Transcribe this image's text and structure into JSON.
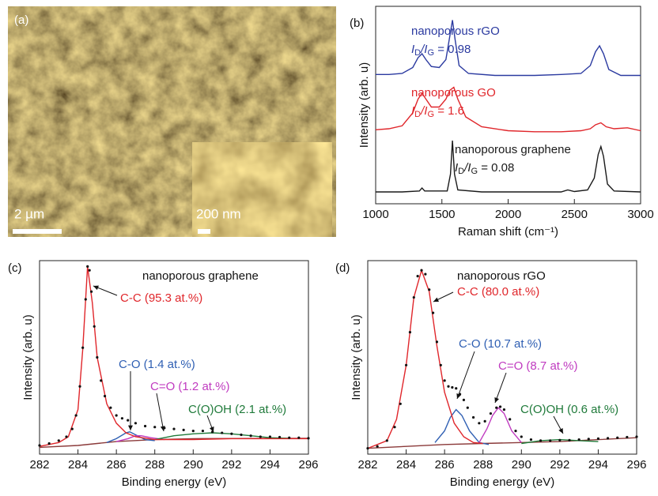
{
  "panel_a": {
    "label": "(a)",
    "scale_bar": "2 µm",
    "inset_scale_bar": "200 nm"
  },
  "chart_data": [
    {
      "type": "line",
      "panel_label": "(b)",
      "xlabel": "Raman shift (cm⁻¹)",
      "ylabel": "Intensity (arb. u)",
      "xlim": [
        1000,
        3000
      ],
      "xticks": [
        1000,
        1500,
        2000,
        2500,
        3000
      ],
      "ylim": [
        0,
        10
      ],
      "series": [
        {
          "color": "#2b3aa0",
          "style": "line",
          "x": [
            1000,
            1100,
            1200,
            1280,
            1320,
            1350,
            1380,
            1420,
            1480,
            1530,
            1560,
            1580,
            1600,
            1630,
            1700,
            1900,
            2200,
            2400,
            2550,
            2620,
            2660,
            2690,
            2720,
            2760,
            2850,
            3000
          ],
          "values": [
            6.55,
            6.55,
            6.6,
            6.9,
            7.4,
            7.6,
            7.3,
            6.95,
            6.9,
            7.3,
            8.5,
            9.3,
            8.3,
            7.0,
            6.6,
            6.5,
            6.5,
            6.55,
            6.6,
            7.0,
            7.7,
            8.0,
            7.6,
            6.8,
            6.5,
            6.5
          ]
        },
        {
          "color": "#e0262b",
          "style": "line",
          "x": [
            1000,
            1100,
            1200,
            1280,
            1320,
            1350,
            1380,
            1420,
            1480,
            1530,
            1560,
            1590,
            1620,
            1680,
            1800,
            2000,
            2200,
            2400,
            2550,
            2620,
            2660,
            2700,
            2740,
            2800,
            2900,
            3000
          ],
          "values": [
            3.75,
            3.8,
            3.95,
            4.6,
            5.3,
            5.6,
            5.3,
            4.9,
            4.9,
            5.3,
            5.75,
            5.9,
            5.3,
            4.4,
            3.9,
            3.7,
            3.65,
            3.65,
            3.7,
            3.8,
            4.0,
            4.1,
            3.9,
            3.8,
            3.85,
            3.7
          ]
        },
        {
          "color": "#1a1a1a",
          "style": "line",
          "x": [
            1000,
            1200,
            1330,
            1350,
            1370,
            1540,
            1565,
            1580,
            1595,
            1620,
            1800,
            2200,
            2400,
            2450,
            2500,
            2600,
            2650,
            2680,
            2700,
            2720,
            2750,
            2800,
            3000
          ],
          "values": [
            0.6,
            0.6,
            0.65,
            0.8,
            0.65,
            0.65,
            1.5,
            3.2,
            1.5,
            0.7,
            0.6,
            0.6,
            0.6,
            0.7,
            0.62,
            0.7,
            1.3,
            2.5,
            2.9,
            2.4,
            1.0,
            0.65,
            0.6
          ]
        }
      ],
      "annotations": [
        {
          "text": "nanoporous rGO",
          "ratio": [
            "I",
            "D",
            "/I",
            "G",
            " = 0.98"
          ],
          "color": "#2b3aa0"
        },
        {
          "text": "nanoporous GO",
          "ratio": [
            "I",
            "D",
            "/I",
            "G",
            " = 1.6"
          ],
          "color": "#e0262b"
        },
        {
          "text": "nanoporous graphene",
          "ratio": [
            "I",
            "D",
            "/I",
            "G",
            " = 0.08"
          ],
          "color": "#1a1a1a"
        }
      ]
    },
    {
      "type": "line",
      "panel_label": "(c)",
      "title": "nanoporous graphene",
      "xlabel": "Binding energy (eV)",
      "ylabel": "Intensity (arb. u)",
      "xlim": [
        282,
        296
      ],
      "xticks": [
        282,
        284,
        286,
        288,
        290,
        292,
        294,
        296
      ],
      "ylim": [
        0,
        10
      ],
      "series": [
        {
          "color": "#8b3a3a",
          "style": "line",
          "x": [
            282,
            284,
            285,
            286,
            288,
            290,
            296
          ],
          "values": [
            0.35,
            0.45,
            0.55,
            0.65,
            0.75,
            0.8,
            0.82
          ]
        },
        {
          "color": "#2f5fb3",
          "style": "line",
          "x": [
            285.5,
            286,
            286.5,
            286.7,
            287,
            287.5,
            288
          ],
          "values": [
            0.6,
            0.8,
            1.1,
            1.15,
            1.0,
            0.75,
            0.7
          ]
        },
        {
          "color": "#c03bc0",
          "style": "line",
          "x": [
            286,
            286.6,
            287,
            287.3,
            287.8,
            288.5
          ],
          "values": [
            0.65,
            0.8,
            0.95,
            0.95,
            0.85,
            0.75
          ]
        },
        {
          "color": "#1f7a3a",
          "style": "line",
          "x": [
            288,
            289,
            290,
            291,
            292,
            293,
            294,
            295
          ],
          "values": [
            0.75,
            0.95,
            1.05,
            1.1,
            1.05,
            0.95,
            0.85,
            0.82
          ]
        },
        {
          "color": "#e0262b",
          "style": "line",
          "x": [
            282,
            283,
            283.5,
            284,
            284.25,
            284.5,
            284.75,
            285,
            285.5,
            286,
            286.5,
            287,
            288,
            290,
            292,
            294,
            296
          ],
          "values": [
            0.4,
            0.6,
            0.9,
            2.3,
            5.4,
            9.7,
            7.8,
            5.0,
            2.6,
            1.6,
            1.1,
            0.9,
            0.75,
            0.75,
            0.8,
            0.8,
            0.8
          ]
        },
        {
          "color": "#111111",
          "style": "dots",
          "x": [
            282,
            282.5,
            283,
            283.4,
            283.7,
            283.9,
            284.1,
            284.25,
            284.4,
            284.5,
            284.6,
            284.7,
            284.85,
            285,
            285.2,
            285.4,
            285.7,
            286,
            286.3,
            286.6,
            287,
            287.5,
            288,
            288.5,
            289,
            289.5,
            290,
            290.5,
            291,
            291.5,
            292,
            292.5,
            293,
            293.5,
            294,
            294.5,
            295,
            295.5,
            296
          ],
          "values": [
            0.45,
            0.55,
            0.7,
            0.9,
            1.3,
            2.0,
            3.5,
            5.5,
            8.0,
            9.7,
            9.5,
            8.4,
            6.6,
            5.0,
            3.8,
            3.0,
            2.4,
            2.0,
            1.85,
            1.75,
            1.6,
            1.45,
            1.4,
            1.35,
            1.3,
            1.25,
            1.2,
            1.2,
            1.15,
            1.1,
            1.05,
            1.0,
            0.95,
            0.9,
            0.9,
            0.88,
            0.85,
            0.85,
            0.82
          ]
        }
      ],
      "annotations": [
        {
          "text": "C-C (95.3 at.%)",
          "color": "#e0262b"
        },
        {
          "text": "C-O (1.4 at.%)",
          "color": "#2f5fb3"
        },
        {
          "text": "C=O (1.2 at.%)",
          "color": "#c03bc0"
        },
        {
          "text": "C(O)OH (2.1 at.%)",
          "color": "#1f7a3a"
        }
      ]
    },
    {
      "type": "line",
      "panel_label": "(d)",
      "title": "nanoporous rGO",
      "xlabel": "Binding energy (eV)",
      "ylabel": "Intensity (arb. u)",
      "xlim": [
        282,
        296
      ],
      "xticks": [
        282,
        284,
        286,
        288,
        290,
        292,
        294,
        296
      ],
      "ylim": [
        0,
        10
      ],
      "series": [
        {
          "color": "#8b3a3a",
          "style": "line",
          "x": [
            282,
            284,
            286,
            288,
            290,
            292,
            294,
            296
          ],
          "values": [
            0.3,
            0.4,
            0.5,
            0.55,
            0.6,
            0.65,
            0.75,
            0.85
          ]
        },
        {
          "color": "#2f5fb3",
          "style": "line",
          "x": [
            285.5,
            286,
            286.3,
            286.6,
            286.9,
            287.3,
            287.8,
            288.3
          ],
          "values": [
            0.6,
            1.2,
            1.9,
            2.3,
            2.0,
            1.2,
            0.6,
            0.5
          ]
        },
        {
          "color": "#c03bc0",
          "style": "line",
          "x": [
            287.8,
            288.2,
            288.5,
            288.8,
            289.1,
            289.5,
            290
          ],
          "values": [
            0.6,
            1.3,
            2.0,
            2.4,
            2.1,
            1.2,
            0.6
          ]
        },
        {
          "color": "#1f7a3a",
          "style": "line",
          "x": [
            290,
            291,
            292,
            293,
            294
          ],
          "values": [
            0.55,
            0.7,
            0.75,
            0.7,
            0.65
          ]
        },
        {
          "color": "#e0262b",
          "style": "line",
          "x": [
            282,
            283,
            283.5,
            284,
            284.4,
            284.8,
            285.2,
            285.6,
            286,
            286.5,
            287,
            287.5,
            288
          ],
          "values": [
            0.3,
            0.7,
            1.8,
            4.6,
            8.1,
            9.5,
            8.4,
            5.6,
            3.2,
            1.6,
            0.9,
            0.6,
            0.55
          ]
        },
        {
          "color": "#111111",
          "style": "dots",
          "x": [
            282,
            282.5,
            283,
            283.4,
            283.7,
            284,
            284.2,
            284.4,
            284.6,
            284.8,
            285,
            285.2,
            285.4,
            285.6,
            285.8,
            286,
            286.2,
            286.4,
            286.6,
            286.8,
            287,
            287.2,
            287.5,
            287.8,
            288.1,
            288.4,
            288.7,
            288.9,
            289.1,
            289.4,
            289.7,
            290,
            290.5,
            291,
            291.5,
            292,
            292.5,
            293,
            293.5,
            294,
            294.5,
            295,
            295.5,
            296
          ],
          "values": [
            0.3,
            0.4,
            0.7,
            1.4,
            2.6,
            4.6,
            6.3,
            8.1,
            9.2,
            9.5,
            9.3,
            8.5,
            7.3,
            5.8,
            4.6,
            3.8,
            3.5,
            3.45,
            3.4,
            3.1,
            2.8,
            2.4,
            1.9,
            1.6,
            1.7,
            2.1,
            2.4,
            2.45,
            2.3,
            1.8,
            1.2,
            0.9,
            0.75,
            0.7,
            0.7,
            0.72,
            0.72,
            0.75,
            0.78,
            0.8,
            0.82,
            0.85,
            0.88,
            0.9
          ]
        }
      ],
      "annotations": [
        {
          "text": "C-C (80.0 at.%)",
          "color": "#e0262b"
        },
        {
          "text": "C-O (10.7 at.%)",
          "color": "#2f5fb3"
        },
        {
          "text": "C=O (8.7 at.%)",
          "color": "#c03bc0"
        },
        {
          "text": "C(O)OH (0.6 at.%)",
          "color": "#1f7a3a"
        }
      ]
    }
  ]
}
